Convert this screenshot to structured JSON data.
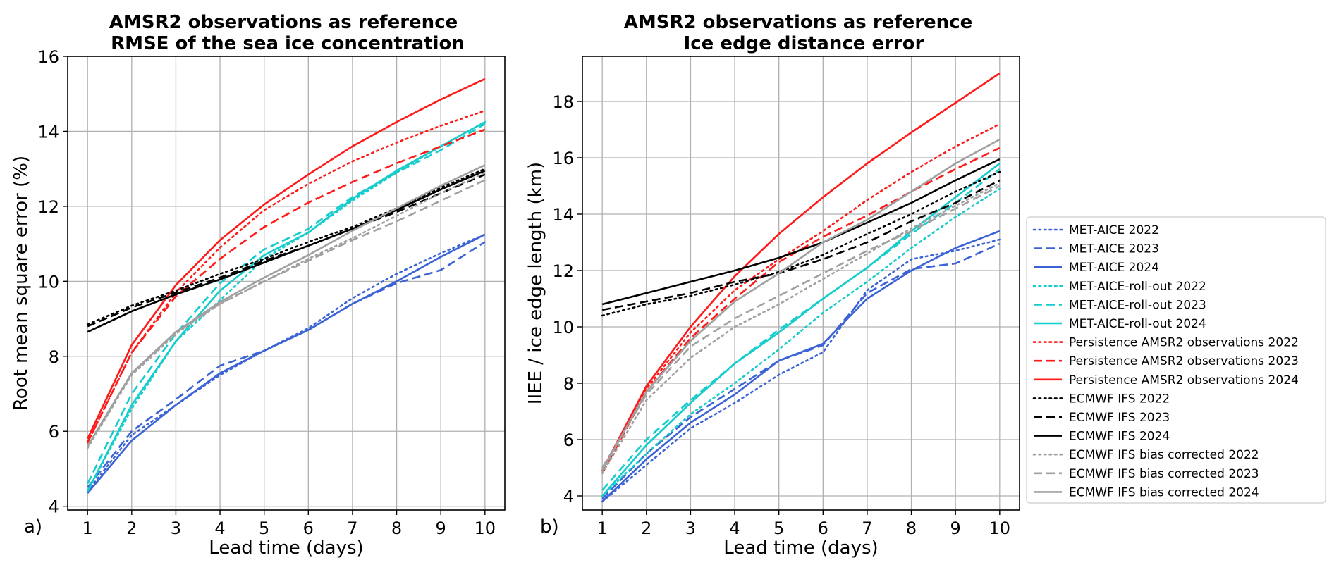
{
  "chart_data": [
    {
      "type": "line",
      "panel_label": "a)",
      "title_lines": [
        "AMSR2 observations as reference",
        "RMSE of the sea ice concentration"
      ],
      "xlabel": "Lead time (days)",
      "ylabel": "Root mean square error (%)",
      "x": [
        1,
        2,
        3,
        4,
        5,
        6,
        7,
        8,
        9,
        10
      ],
      "x_ticks": [
        "1",
        "2",
        "3",
        "4",
        "5",
        "6",
        "7",
        "8",
        "9",
        "10"
      ],
      "xlim": [
        0.55,
        10.45
      ],
      "ylim": [
        3.9,
        16
      ],
      "y_ticks": [
        4,
        6,
        8,
        10,
        12,
        14,
        16
      ],
      "grid": true,
      "series": [
        {
          "name": "MET-AICE 2022",
          "color": "#3b63d6",
          "dash": "dotted",
          "values": [
            4.4,
            5.9,
            6.7,
            7.5,
            8.15,
            8.75,
            9.55,
            10.2,
            10.75,
            11.25
          ]
        },
        {
          "name": "MET-AICE 2023",
          "color": "#3b63d6",
          "dash": "dashed",
          "values": [
            4.5,
            6.0,
            6.85,
            7.75,
            8.15,
            8.7,
            9.4,
            9.95,
            10.3,
            11.05
          ]
        },
        {
          "name": "MET-AICE 2024",
          "color": "#3b63d6",
          "dash": "solid",
          "values": [
            4.35,
            5.75,
            6.7,
            7.55,
            8.15,
            8.7,
            9.4,
            10.0,
            10.65,
            11.25
          ]
        },
        {
          "name": "MET-AICE-roll-out 2022",
          "color": "#17cccc",
          "dash": "dotted",
          "values": [
            4.4,
            6.6,
            8.4,
            9.5,
            10.6,
            11.3,
            12.15,
            12.9,
            13.6,
            14.25
          ]
        },
        {
          "name": "MET-AICE-roll-out 2023",
          "color": "#17cccc",
          "dash": "dashed",
          "values": [
            4.6,
            7.0,
            8.6,
            9.95,
            10.85,
            11.4,
            12.25,
            12.9,
            13.5,
            14.2
          ]
        },
        {
          "name": "MET-AICE-roll-out 2024",
          "color": "#17cccc",
          "dash": "solid",
          "values": [
            4.4,
            6.7,
            8.4,
            9.75,
            10.7,
            11.3,
            12.2,
            12.95,
            13.6,
            14.25
          ]
        },
        {
          "name": "Persistence AMSR2 observations 2022",
          "color": "#ff1a1a",
          "dash": "dotted",
          "values": [
            5.7,
            8.1,
            9.7,
            10.9,
            11.9,
            12.6,
            13.2,
            13.7,
            14.15,
            14.55
          ]
        },
        {
          "name": "Persistence AMSR2 observations 2023",
          "color": "#ff1a1a",
          "dash": "dashed",
          "values": [
            5.7,
            8.1,
            9.6,
            10.6,
            11.45,
            12.1,
            12.65,
            13.15,
            13.6,
            14.05
          ]
        },
        {
          "name": "Persistence AMSR2 observations 2024",
          "color": "#ff1a1a",
          "dash": "solid",
          "values": [
            5.8,
            8.3,
            9.9,
            11.1,
            12.05,
            12.85,
            13.6,
            14.25,
            14.85,
            15.4
          ]
        },
        {
          "name": "ECMWF IFS 2022",
          "color": "#000000",
          "dash": "dotted",
          "values": [
            8.85,
            9.35,
            9.75,
            10.2,
            10.6,
            11.05,
            11.45,
            11.95,
            12.5,
            13.0
          ]
        },
        {
          "name": "ECMWF IFS 2023",
          "color": "#000000",
          "dash": "dashed",
          "values": [
            8.8,
            9.3,
            9.7,
            10.1,
            10.55,
            10.95,
            11.4,
            11.85,
            12.35,
            12.85
          ]
        },
        {
          "name": "ECMWF IFS 2024",
          "color": "#000000",
          "dash": "solid",
          "values": [
            8.65,
            9.2,
            9.65,
            10.05,
            10.5,
            10.95,
            11.4,
            11.9,
            12.45,
            12.95
          ]
        },
        {
          "name": "ECMWF IFS bias corrected 2022",
          "color": "#a0a0a0",
          "dash": "dotted",
          "values": [
            5.55,
            7.5,
            8.6,
            9.4,
            10.0,
            10.6,
            11.15,
            11.75,
            12.35,
            12.9
          ]
        },
        {
          "name": "ECMWF IFS bias corrected 2023",
          "color": "#a0a0a0",
          "dash": "dashed",
          "values": [
            5.6,
            7.55,
            8.65,
            9.4,
            10.0,
            10.55,
            11.1,
            11.6,
            12.15,
            12.7
          ]
        },
        {
          "name": "ECMWF IFS bias corrected 2024",
          "color": "#a0a0a0",
          "dash": "solid",
          "values": [
            5.6,
            7.55,
            8.65,
            9.45,
            10.1,
            10.7,
            11.35,
            11.95,
            12.55,
            13.1
          ]
        }
      ]
    },
    {
      "type": "line",
      "panel_label": "b)",
      "title_lines": [
        "AMSR2 observations as reference",
        "Ice edge distance error"
      ],
      "xlabel": "Lead time (days)",
      "ylabel": "IIEE / ice edge length (km)",
      "x": [
        1,
        2,
        3,
        4,
        5,
        6,
        7,
        8,
        9,
        10
      ],
      "x_ticks": [
        "1",
        "2",
        "3",
        "4",
        "5",
        "6",
        "7",
        "8",
        "9",
        "10"
      ],
      "xlim": [
        0.55,
        10.45
      ],
      "ylim": [
        3.5,
        19.6
      ],
      "y_ticks": [
        4,
        6,
        8,
        10,
        12,
        14,
        16,
        18
      ],
      "grid": true,
      "legend_position": "right, outside",
      "series": [
        {
          "name": "MET-AICE 2022",
          "color": "#3b63d6",
          "dash": "dotted",
          "values": [
            3.8,
            5.1,
            6.4,
            7.3,
            8.3,
            9.1,
            11.3,
            12.4,
            12.7,
            13.1
          ]
        },
        {
          "name": "MET-AICE 2023",
          "color": "#3b63d6",
          "dash": "dashed",
          "values": [
            3.9,
            5.5,
            6.8,
            7.8,
            8.8,
            9.35,
            11.2,
            12.05,
            12.25,
            12.95
          ]
        },
        {
          "name": "MET-AICE 2024",
          "color": "#3b63d6",
          "dash": "solid",
          "values": [
            3.8,
            5.3,
            6.6,
            7.6,
            8.8,
            9.4,
            11.0,
            12.0,
            12.8,
            13.4
          ]
        },
        {
          "name": "MET-AICE-roll-out 2022",
          "color": "#17cccc",
          "dash": "dotted",
          "values": [
            4.0,
            5.5,
            6.9,
            8.0,
            9.2,
            10.5,
            11.6,
            12.8,
            13.9,
            14.9
          ]
        },
        {
          "name": "MET-AICE-roll-out 2023",
          "color": "#17cccc",
          "dash": "dashed",
          "values": [
            4.2,
            6.0,
            7.4,
            8.7,
            9.9,
            11.0,
            12.1,
            13.3,
            14.4,
            15.6
          ]
        },
        {
          "name": "MET-AICE-roll-out 2024",
          "color": "#17cccc",
          "dash": "solid",
          "values": [
            4.0,
            5.8,
            7.3,
            8.7,
            9.8,
            11.0,
            12.1,
            13.4,
            14.6,
            15.8
          ]
        },
        {
          "name": "Persistence AMSR2 observations 2022",
          "color": "#ff1a1a",
          "dash": "dotted",
          "values": [
            4.9,
            7.8,
            9.8,
            11.3,
            12.4,
            13.4,
            14.5,
            15.5,
            16.4,
            17.2
          ]
        },
        {
          "name": "Persistence AMSR2 observations 2023",
          "color": "#ff1a1a",
          "dash": "dashed",
          "values": [
            4.8,
            7.7,
            9.6,
            11.0,
            12.3,
            13.2,
            13.95,
            14.8,
            15.6,
            16.35
          ]
        },
        {
          "name": "Persistence AMSR2 observations 2024",
          "color": "#ff1a1a",
          "dash": "solid",
          "values": [
            4.9,
            7.9,
            10.0,
            11.8,
            13.3,
            14.6,
            15.8,
            16.9,
            17.95,
            19.0
          ]
        },
        {
          "name": "ECMWF IFS 2022",
          "color": "#000000",
          "dash": "dotted",
          "values": [
            10.4,
            10.8,
            11.1,
            11.5,
            11.95,
            12.55,
            13.3,
            14.0,
            14.8,
            15.5
          ]
        },
        {
          "name": "ECMWF IFS 2023",
          "color": "#000000",
          "dash": "dashed",
          "values": [
            10.6,
            10.9,
            11.2,
            11.6,
            11.9,
            12.4,
            13.0,
            13.75,
            14.4,
            15.2
          ]
        },
        {
          "name": "ECMWF IFS 2024",
          "color": "#000000",
          "dash": "solid",
          "values": [
            10.8,
            11.2,
            11.6,
            12.0,
            12.45,
            13.0,
            13.7,
            14.4,
            15.2,
            15.95
          ]
        },
        {
          "name": "ECMWF IFS bias corrected 2022",
          "color": "#a0a0a0",
          "dash": "dotted",
          "values": [
            4.8,
            7.4,
            8.9,
            10.0,
            10.8,
            11.7,
            12.6,
            13.5,
            14.3,
            15.1
          ]
        },
        {
          "name": "ECMWF IFS bias corrected 2023",
          "color": "#a0a0a0",
          "dash": "dashed",
          "values": [
            5.0,
            7.6,
            9.3,
            10.3,
            11.1,
            11.9,
            12.7,
            13.4,
            14.2,
            15.0
          ]
        },
        {
          "name": "ECMWF IFS bias corrected 2024",
          "color": "#a0a0a0",
          "dash": "solid",
          "values": [
            4.9,
            7.7,
            9.5,
            10.9,
            11.9,
            13.0,
            13.8,
            14.8,
            15.8,
            16.65
          ]
        }
      ]
    }
  ]
}
